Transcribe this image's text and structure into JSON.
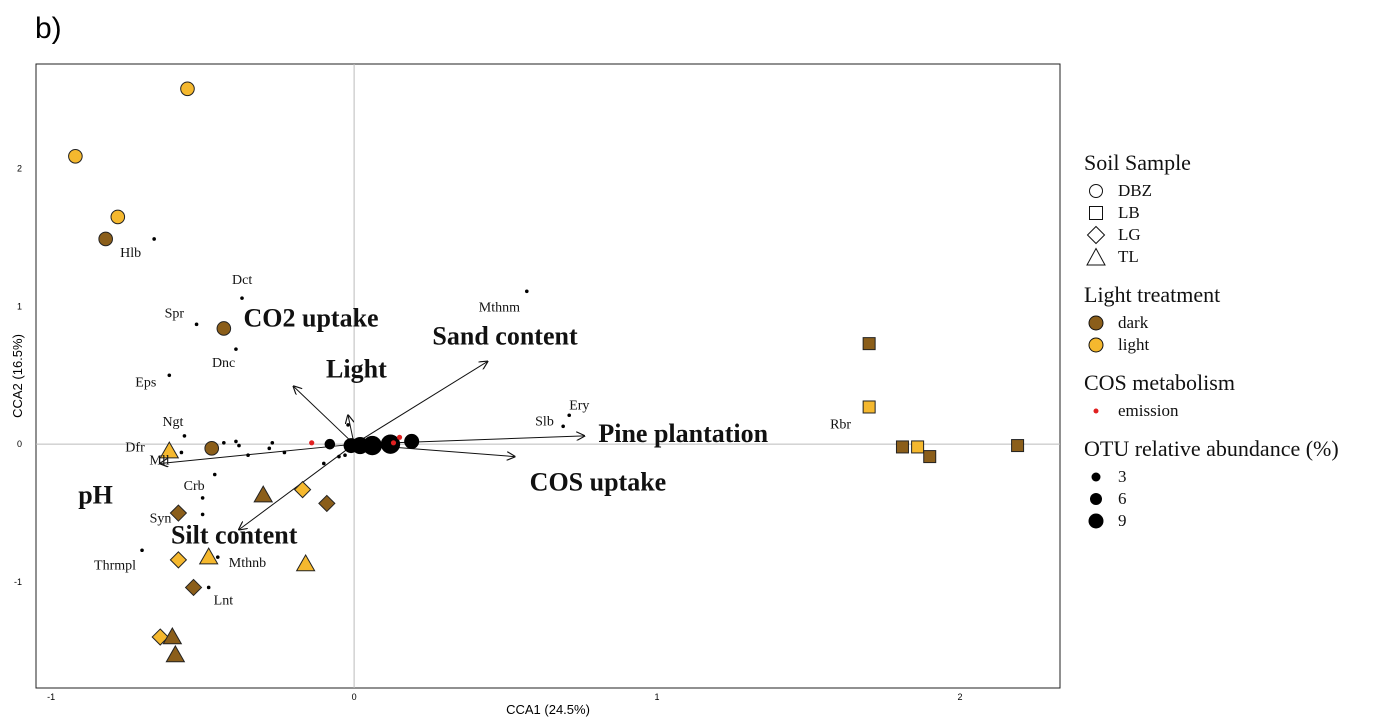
{
  "panel_label": "b)",
  "chart_data": {
    "type": "scatter",
    "title": "",
    "xlabel": "CCA1 (24.5%)",
    "ylabel": "CCA2 (16.5%)",
    "xlim": [
      -1.05,
      2.33
    ],
    "ylim": [
      -1.77,
      2.76
    ],
    "xticks": [
      -1,
      0,
      1,
      2
    ],
    "yticks": [
      -1,
      0,
      1,
      2
    ],
    "reference_lines": {
      "x": 0,
      "y": 0
    },
    "colors": {
      "dark": "#8B5E1A",
      "light": "#F5B82E",
      "emission": "#E02020",
      "otu": "#000000"
    },
    "samples": [
      {
        "soil": "DBZ",
        "light": "light",
        "x": -0.55,
        "y": 2.58
      },
      {
        "soil": "DBZ",
        "light": "light",
        "x": -0.92,
        "y": 2.09
      },
      {
        "soil": "DBZ",
        "light": "light",
        "x": -0.78,
        "y": 1.65
      },
      {
        "soil": "DBZ",
        "light": "dark",
        "x": -0.82,
        "y": 1.49
      },
      {
        "soil": "DBZ",
        "light": "dark",
        "x": -0.43,
        "y": 0.84
      },
      {
        "soil": "DBZ",
        "light": "dark",
        "x": -0.47,
        "y": -0.03
      },
      {
        "soil": "LB",
        "light": "dark",
        "x": 1.7,
        "y": 0.73
      },
      {
        "soil": "LB",
        "light": "light",
        "x": 1.7,
        "y": 0.27
      },
      {
        "soil": "LB",
        "light": "dark",
        "x": 1.81,
        "y": -0.02
      },
      {
        "soil": "LB",
        "light": "light",
        "x": 1.86,
        "y": -0.02
      },
      {
        "soil": "LB",
        "light": "dark",
        "x": 1.9,
        "y": -0.09
      },
      {
        "soil": "LB",
        "light": "dark",
        "x": 2.19,
        "y": -0.01
      },
      {
        "soil": "LG",
        "light": "light",
        "x": -0.17,
        "y": -0.33
      },
      {
        "soil": "LG",
        "light": "dark",
        "x": -0.09,
        "y": -0.43
      },
      {
        "soil": "LG",
        "light": "dark",
        "x": -0.58,
        "y": -0.5
      },
      {
        "soil": "LG",
        "light": "light",
        "x": -0.58,
        "y": -0.84
      },
      {
        "soil": "LG",
        "light": "dark",
        "x": -0.53,
        "y": -1.04
      },
      {
        "soil": "LG",
        "light": "light",
        "x": -0.64,
        "y": -1.4
      },
      {
        "soil": "TL",
        "light": "light",
        "x": -0.61,
        "y": -0.05
      },
      {
        "soil": "TL",
        "light": "dark",
        "x": -0.3,
        "y": -0.37
      },
      {
        "soil": "TL",
        "light": "light",
        "x": -0.48,
        "y": -0.82
      },
      {
        "soil": "TL",
        "light": "light",
        "x": -0.16,
        "y": -0.87
      },
      {
        "soil": "TL",
        "light": "dark",
        "x": -0.6,
        "y": -1.4
      },
      {
        "soil": "TL",
        "light": "dark",
        "x": -0.59,
        "y": -1.53
      }
    ],
    "otus": [
      {
        "label": "Hlb",
        "x": -0.66,
        "y": 1.49
      },
      {
        "label": "Dct",
        "x": -0.37,
        "y": 1.06
      },
      {
        "label": "Spr",
        "x": -0.52,
        "y": 0.87
      },
      {
        "label": "Dnc",
        "x": -0.39,
        "y": 0.69
      },
      {
        "label": "Eps",
        "x": -0.61,
        "y": 0.5
      },
      {
        "label": "Ngt",
        "x": -0.56,
        "y": 0.06
      },
      {
        "label": "Dfr",
        "x": -0.61,
        "y": -0.03
      },
      {
        "label": "Mll",
        "x": -0.57,
        "y": -0.06
      },
      {
        "label": "Crb",
        "x": -0.5,
        "y": -0.39
      },
      {
        "label": "Syn",
        "x": -0.5,
        "y": -0.51
      },
      {
        "label": "Thrmpl",
        "x": -0.7,
        "y": -0.77
      },
      {
        "label": "Mthnb",
        "x": -0.45,
        "y": -0.82
      },
      {
        "label": "Lnt",
        "x": -0.48,
        "y": -1.04
      },
      {
        "label": "Mthnm",
        "x": 0.57,
        "y": 1.11
      },
      {
        "label": "Slb",
        "x": 0.69,
        "y": 0.13
      },
      {
        "label": "Ery",
        "x": 0.71,
        "y": 0.21
      },
      {
        "label": "Rbr",
        "x": 1.69,
        "y": 0.25
      }
    ],
    "otus_unlabeled": [
      {
        "x": -0.43,
        "y": 0.01,
        "size": 1
      },
      {
        "x": -0.39,
        "y": 0.02,
        "size": 1
      },
      {
        "x": -0.38,
        "y": -0.01,
        "size": 1
      },
      {
        "x": -0.35,
        "y": -0.08,
        "size": 1
      },
      {
        "x": -0.28,
        "y": -0.03,
        "size": 1
      },
      {
        "x": -0.27,
        "y": 0.01,
        "size": 1
      },
      {
        "x": -0.23,
        "y": -0.06,
        "size": 1
      },
      {
        "x": -0.46,
        "y": -0.22,
        "size": 1
      },
      {
        "x": -0.1,
        "y": -0.14,
        "size": 1
      },
      {
        "x": -0.05,
        "y": -0.09,
        "size": 1
      },
      {
        "x": -0.03,
        "y": -0.08,
        "size": 1
      },
      {
        "x": -0.02,
        "y": 0.14,
        "size": 1
      },
      {
        "x": -0.08,
        "y": 0.0,
        "size": 3
      },
      {
        "x": -0.01,
        "y": -0.01,
        "size": 5
      },
      {
        "x": 0.02,
        "y": -0.01,
        "size": 6
      },
      {
        "x": 0.06,
        "y": -0.01,
        "size": 7
      },
      {
        "x": 0.12,
        "y": 0.0,
        "size": 7
      },
      {
        "x": 0.19,
        "y": 0.02,
        "size": 5
      }
    ],
    "emission_points": [
      {
        "x": -0.14,
        "y": 0.01
      },
      {
        "x": 0.15,
        "y": 0.05
      },
      {
        "x": 0.13,
        "y": 0.01
      }
    ],
    "env_vectors": [
      {
        "label": "CO2 uptake",
        "x": -0.2,
        "y": 0.42
      },
      {
        "label": "Light",
        "x": -0.02,
        "y": 0.21
      },
      {
        "label": "Sand content",
        "x": 0.44,
        "y": 0.6
      },
      {
        "label": "Pine plantation",
        "x": 0.76,
        "y": 0.06
      },
      {
        "label": "COS uptake",
        "x": 0.53,
        "y": -0.09
      },
      {
        "label": "pH",
        "x": -0.64,
        "y": -0.14
      },
      {
        "label": "Silt content",
        "x": -0.38,
        "y": -0.62
      }
    ]
  },
  "legend": {
    "soil": {
      "title": "Soil Sample",
      "items": [
        "DBZ",
        "LB",
        "LG",
        "TL"
      ]
    },
    "light": {
      "title": "Light treatment",
      "items": [
        {
          "label": "dark",
          "color": "#8B5E1A"
        },
        {
          "label": "light",
          "color": "#F5B82E"
        }
      ]
    },
    "cos": {
      "title": "COS metabolism",
      "items": [
        {
          "label": "emission",
          "color": "#E02020"
        }
      ]
    },
    "otu": {
      "title": "OTU relative abundance (%)",
      "items": [
        "3",
        "6",
        "9"
      ]
    }
  }
}
